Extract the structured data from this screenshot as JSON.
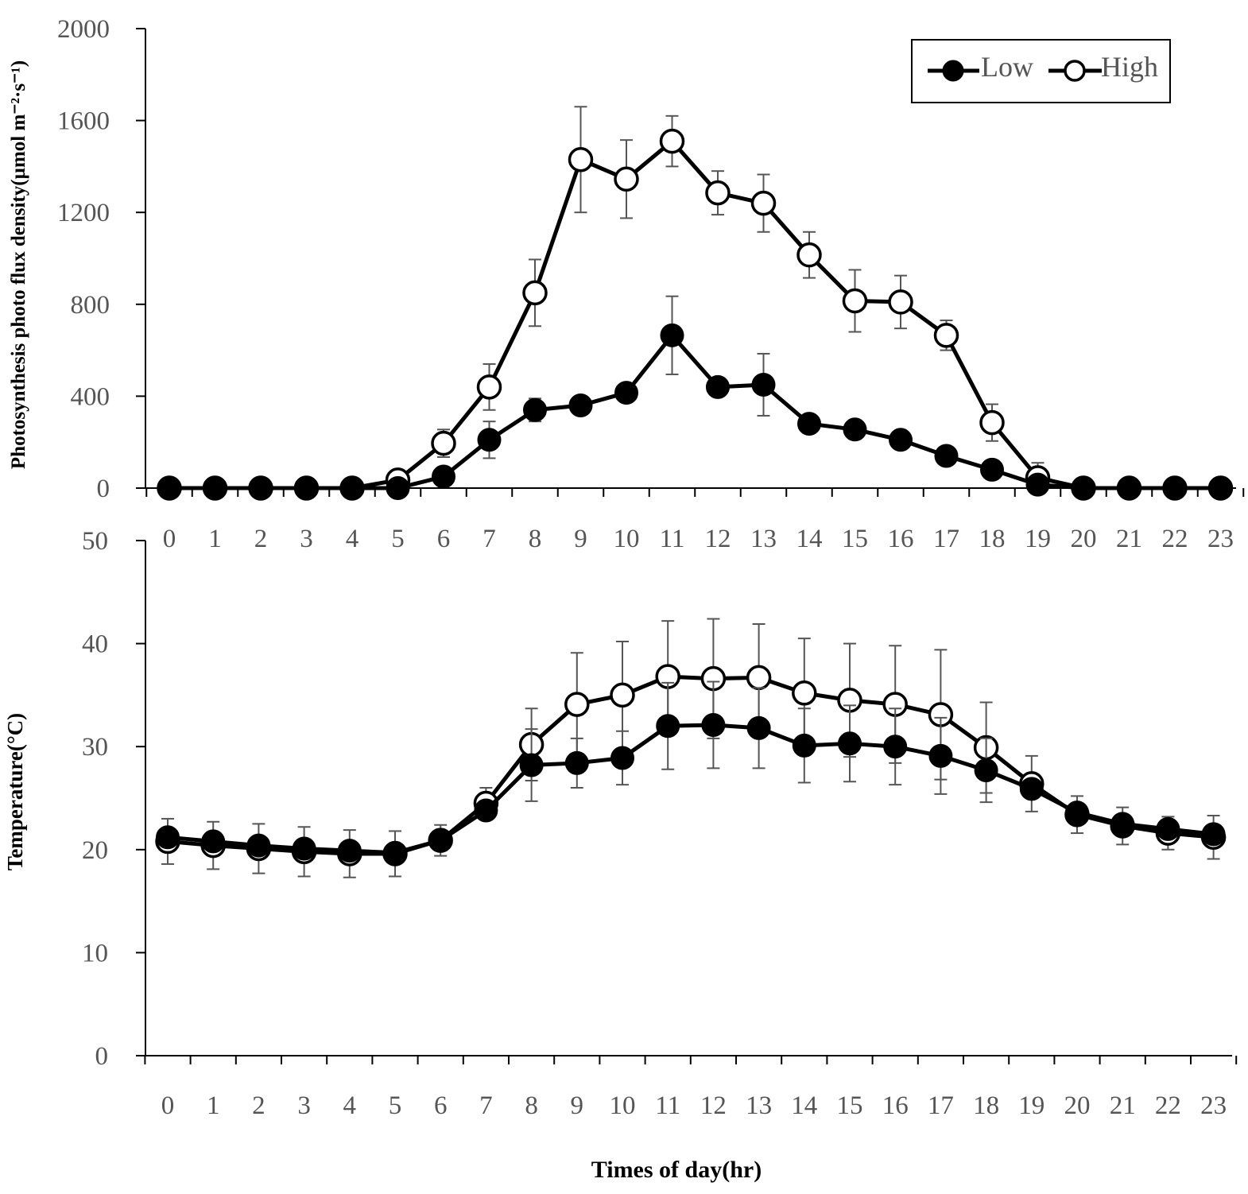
{
  "legend": {
    "low_label": "Low",
    "high_label": "High"
  },
  "chart_data": [
    {
      "type": "line",
      "title": "",
      "xlabel": "",
      "ylabel": "Photosynthesis photo flux density(µmol m⁻²·s⁻¹)",
      "ylim": [
        0,
        2000
      ],
      "yticks": [
        0,
        400,
        800,
        1200,
        1600,
        2000
      ],
      "x": [
        0,
        1,
        2,
        3,
        4,
        5,
        6,
        7,
        8,
        9,
        10,
        11,
        12,
        13,
        14,
        15,
        16,
        17,
        18,
        19,
        20,
        21,
        22,
        23
      ],
      "series": [
        {
          "name": "Low",
          "marker": "filled-circle",
          "values": [
            0,
            0,
            0,
            0,
            0,
            0,
            50,
            210,
            340,
            360,
            415,
            665,
            440,
            450,
            280,
            255,
            210,
            140,
            80,
            15,
            0,
            0,
            0,
            0
          ],
          "error": [
            0,
            0,
            0,
            0,
            0,
            0,
            0,
            80,
            50,
            0,
            0,
            170,
            0,
            135,
            0,
            0,
            0,
            0,
            0,
            0,
            0,
            0,
            0,
            0
          ]
        },
        {
          "name": "High",
          "marker": "open-circle",
          "values": [
            0,
            0,
            0,
            0,
            0,
            35,
            195,
            440,
            850,
            1430,
            1345,
            1510,
            1285,
            1240,
            1015,
            815,
            810,
            665,
            285,
            45,
            0,
            0,
            0,
            0
          ],
          "error": [
            0,
            0,
            0,
            0,
            0,
            0,
            60,
            100,
            145,
            230,
            170,
            110,
            95,
            125,
            100,
            135,
            115,
            65,
            80,
            65,
            0,
            0,
            0,
            0
          ]
        }
      ]
    },
    {
      "type": "line",
      "title": "",
      "xlabel": "Times of day(hr)",
      "ylabel": "Temperature(°C)",
      "ylim": [
        0,
        50
      ],
      "yticks": [
        0,
        10,
        20,
        30,
        40,
        50
      ],
      "x": [
        0,
        1,
        2,
        3,
        4,
        5,
        6,
        7,
        8,
        9,
        10,
        11,
        12,
        13,
        14,
        15,
        16,
        17,
        18,
        19,
        20,
        21,
        22,
        23
      ],
      "series": [
        {
          "name": "Low",
          "marker": "filled-circle",
          "values": [
            21.2,
            20.8,
            20.4,
            20.1,
            19.9,
            19.7,
            20.9,
            23.8,
            28.2,
            28.4,
            28.9,
            32.0,
            32.1,
            31.8,
            30.1,
            30.3,
            30.0,
            29.1,
            27.7,
            25.9,
            23.6,
            22.5,
            22.0,
            21.5
          ],
          "error": [
            0,
            0,
            0,
            0,
            0,
            0,
            0,
            0,
            3.5,
            2.4,
            2.6,
            4.2,
            4.2,
            3.9,
            3.6,
            3.7,
            3.7,
            3.7,
            3.1,
            0,
            0,
            0,
            0,
            0
          ]
        },
        {
          "name": "High",
          "marker": "open-circle",
          "values": [
            20.8,
            20.4,
            20.1,
            19.8,
            19.6,
            19.6,
            20.9,
            24.5,
            30.2,
            34.1,
            35.0,
            36.8,
            36.6,
            36.7,
            35.2,
            34.5,
            34.1,
            33.1,
            29.9,
            26.4,
            23.4,
            22.3,
            21.6,
            21.2
          ],
          "error": [
            2.2,
            2.3,
            2.4,
            2.4,
            2.3,
            2.2,
            1.5,
            1.5,
            3.5,
            5.0,
            5.2,
            5.4,
            5.8,
            5.2,
            5.3,
            5.5,
            5.7,
            6.3,
            4.4,
            2.7,
            1.8,
            1.8,
            1.6,
            2.1
          ]
        }
      ]
    }
  ]
}
